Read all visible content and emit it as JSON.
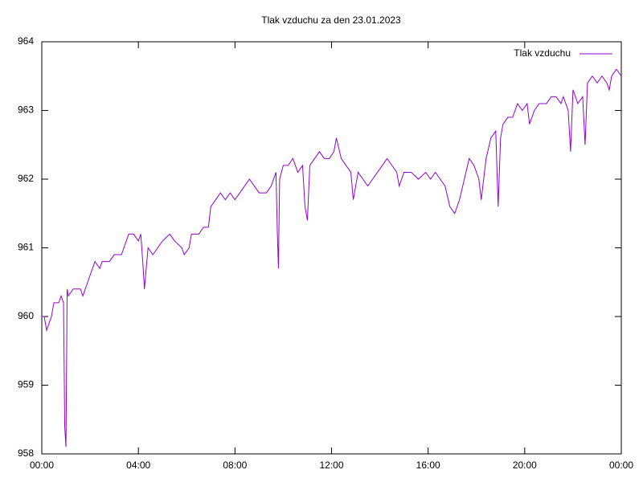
{
  "chart_data": {
    "type": "line",
    "title": "Tlak vzduchu za den 23.01.2023",
    "x": [
      0.0,
      0.1,
      0.2,
      0.3,
      0.4,
      0.5,
      0.7,
      0.8,
      0.9,
      0.95,
      1.0,
      1.05,
      1.1,
      1.3,
      1.6,
      1.7,
      1.9,
      2.0,
      2.2,
      2.4,
      2.5,
      2.8,
      3.0,
      3.3,
      3.5,
      3.6,
      3.8,
      4.0,
      4.1,
      4.2,
      4.25,
      4.4,
      4.6,
      4.8,
      5.0,
      5.3,
      5.5,
      5.8,
      5.9,
      6.1,
      6.2,
      6.5,
      6.7,
      6.9,
      7.0,
      7.2,
      7.4,
      7.6,
      7.8,
      8.0,
      8.2,
      8.4,
      8.6,
      8.8,
      9.0,
      9.3,
      9.5,
      9.7,
      9.75,
      9.8,
      9.85,
      10.0,
      10.2,
      10.4,
      10.6,
      10.8,
      10.9,
      11.0,
      11.1,
      11.3,
      11.5,
      11.7,
      11.9,
      12.1,
      12.2,
      12.4,
      12.6,
      12.8,
      12.9,
      13.1,
      13.3,
      13.5,
      13.7,
      13.9,
      14.1,
      14.3,
      14.5,
      14.7,
      14.8,
      15.0,
      15.3,
      15.6,
      15.9,
      16.1,
      16.3,
      16.5,
      16.7,
      16.9,
      17.1,
      17.3,
      17.5,
      17.7,
      17.9,
      18.1,
      18.2,
      18.4,
      18.6,
      18.8,
      18.9,
      19.0,
      19.1,
      19.3,
      19.5,
      19.7,
      19.9,
      20.1,
      20.2,
      20.4,
      20.6,
      20.9,
      21.1,
      21.3,
      21.5,
      21.6,
      21.8,
      21.9,
      22.0,
      22.2,
      22.4,
      22.5,
      22.6,
      22.8,
      23.0,
      23.2,
      23.4,
      23.5,
      23.6,
      23.8,
      24.0
    ],
    "series": [
      {
        "name": "Tlak vzduchu",
        "color": "#9400d3",
        "values": [
          960.0,
          960.0,
          959.8,
          959.9,
          960.0,
          960.2,
          960.2,
          960.3,
          960.2,
          958.4,
          958.1,
          960.4,
          960.3,
          960.4,
          960.4,
          960.3,
          960.5,
          960.6,
          960.8,
          960.7,
          960.8,
          960.8,
          960.9,
          960.9,
          961.1,
          961.2,
          961.2,
          961.1,
          961.2,
          960.7,
          960.4,
          961.0,
          960.9,
          961.0,
          961.1,
          961.2,
          961.1,
          961.0,
          960.9,
          961.0,
          961.2,
          961.2,
          961.3,
          961.3,
          961.6,
          961.7,
          961.8,
          961.7,
          961.8,
          961.7,
          961.8,
          961.9,
          962.0,
          961.9,
          961.8,
          961.8,
          961.9,
          962.1,
          961.3,
          960.7,
          962.0,
          962.2,
          962.2,
          962.3,
          962.1,
          962.2,
          961.6,
          961.4,
          962.2,
          962.3,
          962.4,
          962.3,
          962.3,
          962.4,
          962.6,
          962.3,
          962.2,
          962.1,
          961.7,
          962.1,
          962.0,
          961.9,
          962.0,
          962.1,
          962.2,
          962.3,
          962.2,
          962.1,
          961.9,
          962.1,
          962.1,
          962.0,
          962.1,
          962.0,
          962.1,
          962.0,
          961.9,
          961.6,
          961.5,
          961.7,
          962.0,
          962.3,
          962.2,
          962.0,
          961.7,
          962.3,
          962.6,
          962.7,
          961.6,
          962.6,
          962.8,
          962.9,
          962.9,
          963.1,
          963.0,
          963.1,
          962.8,
          963.0,
          963.1,
          963.1,
          963.2,
          963.2,
          963.1,
          963.2,
          963.0,
          962.4,
          963.3,
          963.1,
          963.2,
          962.5,
          963.4,
          963.5,
          963.4,
          963.5,
          963.4,
          963.3,
          963.5,
          963.6,
          963.5
        ]
      }
    ],
    "xlim": [
      0,
      24
    ],
    "xticks": [
      {
        "value": 0,
        "label": "00:00"
      },
      {
        "value": 4,
        "label": "04:00"
      },
      {
        "value": 8,
        "label": "08:00"
      },
      {
        "value": 12,
        "label": "12:00"
      },
      {
        "value": 16,
        "label": "16:00"
      },
      {
        "value": 20,
        "label": "20:00"
      },
      {
        "value": 24,
        "label": "00:00"
      }
    ],
    "ylim": [
      958,
      964
    ],
    "yticks": [
      958,
      959,
      960,
      961,
      962,
      963,
      964
    ],
    "legend": "top-right"
  }
}
